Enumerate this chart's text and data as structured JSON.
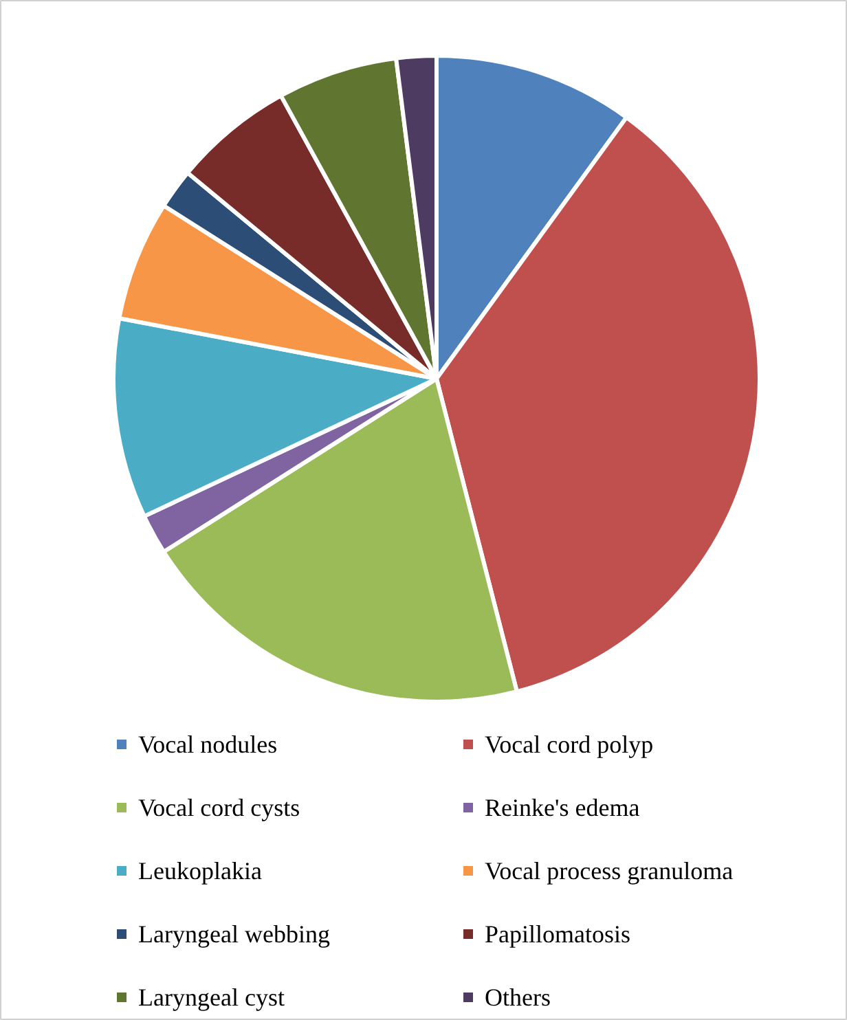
{
  "chart_data": {
    "type": "pie",
    "categories": [
      "Vocal nodules",
      "Vocal cord polyp",
      "Vocal cord cysts",
      "Reinke's edema",
      "Leukoplakia",
      "Vocal process granuloma",
      "Laryngeal webbing",
      "Papillomatosis",
      "Laryngeal cyst",
      "Others"
    ],
    "values": [
      10,
      36,
      20,
      2,
      10,
      6,
      2,
      6,
      6,
      2
    ],
    "colors": [
      "#4f81bd",
      "#c0504d",
      "#9bbb59",
      "#8064a2",
      "#4bacc6",
      "#f79646",
      "#2c4d75",
      "#772c2a",
      "#5f7530",
      "#4d3b62"
    ],
    "legend": "bottom"
  }
}
